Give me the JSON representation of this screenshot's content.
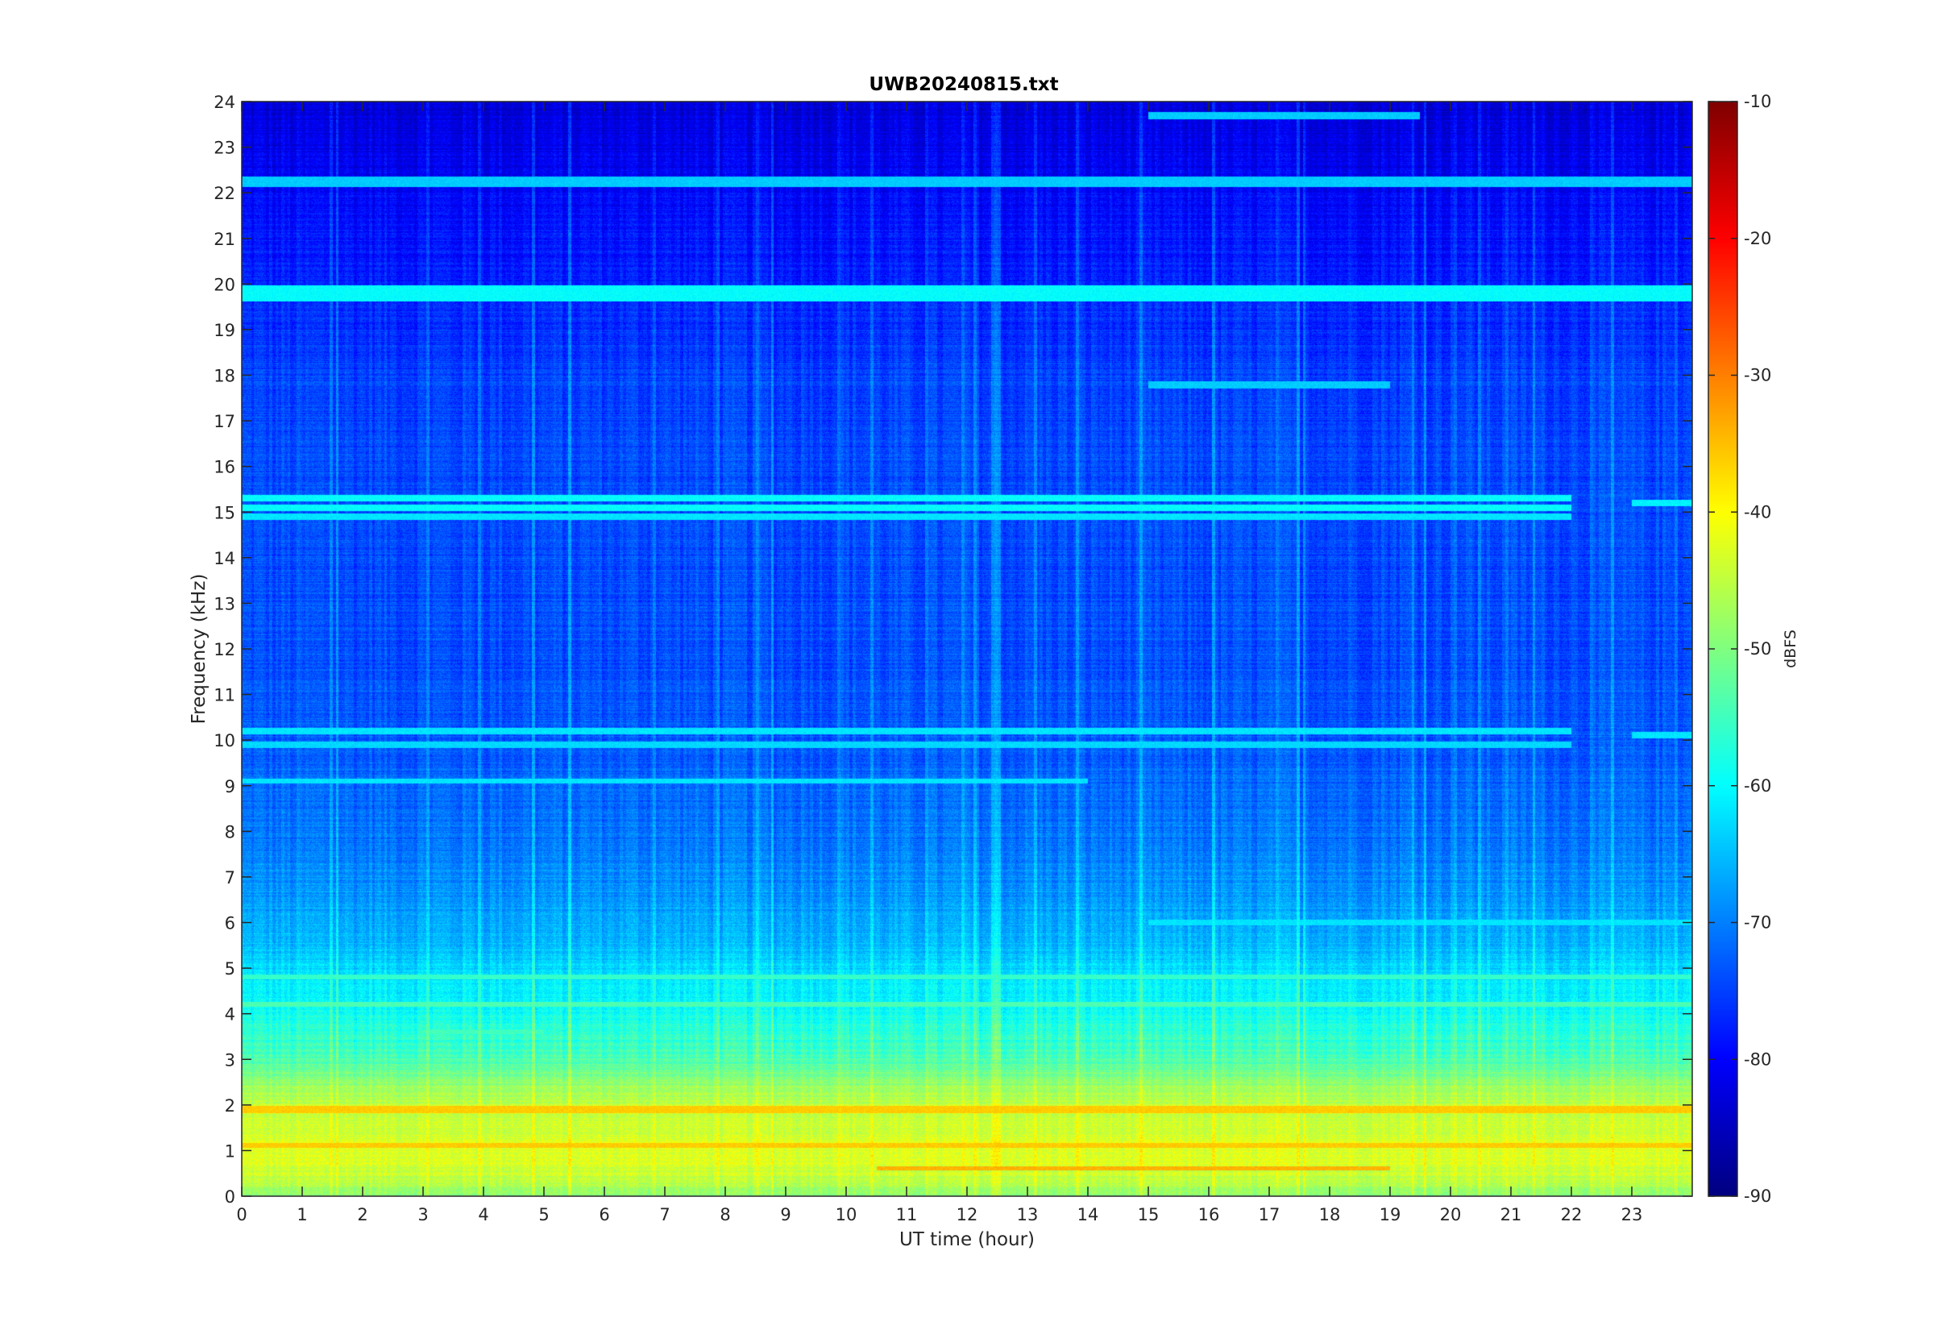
{
  "chart_data": {
    "type": "heatmap",
    "title": "UWB20240815.txt",
    "xlabel": "UT time (hour)",
    "ylabel": "Frequency (kHz)",
    "xlim": [
      0,
      24
    ],
    "ylim": [
      0,
      24
    ],
    "x_ticks": [
      0,
      1,
      2,
      3,
      4,
      5,
      6,
      7,
      8,
      9,
      10,
      11,
      12,
      13,
      14,
      15,
      16,
      17,
      18,
      19,
      20,
      21,
      22,
      23
    ],
    "y_ticks": [
      0,
      1,
      2,
      3,
      4,
      5,
      6,
      7,
      8,
      9,
      10,
      11,
      12,
      13,
      14,
      15,
      16,
      17,
      18,
      19,
      20,
      21,
      22,
      23,
      24
    ],
    "colorbar": {
      "label": "dBFS",
      "range": [
        -90,
        -10
      ],
      "ticks": [
        -90,
        -80,
        -70,
        -60,
        -50,
        -40,
        -30,
        -20,
        -10
      ],
      "colormap": "jet"
    },
    "background_level_by_freq_khz": [
      {
        "f": 0.0,
        "db": -49
      },
      {
        "f": 0.5,
        "db": -44
      },
      {
        "f": 1.0,
        "db": -42
      },
      {
        "f": 1.5,
        "db": -44
      },
      {
        "f": 2.0,
        "db": -45
      },
      {
        "f": 2.5,
        "db": -49
      },
      {
        "f": 3.0,
        "db": -54
      },
      {
        "f": 4.0,
        "db": -59
      },
      {
        "f": 5.0,
        "db": -63
      },
      {
        "f": 6.0,
        "db": -67
      },
      {
        "f": 7.0,
        "db": -69
      },
      {
        "f": 8.0,
        "db": -71
      },
      {
        "f": 9.0,
        "db": -72
      },
      {
        "f": 10.0,
        "db": -73
      },
      {
        "f": 12.0,
        "db": -74
      },
      {
        "f": 15.0,
        "db": -74
      },
      {
        "f": 18.0,
        "db": -75
      },
      {
        "f": 20.5,
        "db": -78
      },
      {
        "f": 22.0,
        "db": -80
      },
      {
        "f": 24.0,
        "db": -83
      }
    ],
    "bands": [
      {
        "f": 19.8,
        "width": 0.18,
        "db": -60,
        "t0": 0,
        "t1": 24
      },
      {
        "f": 22.25,
        "width": 0.12,
        "db": -64,
        "t0": 0,
        "t1": 24
      },
      {
        "f": 23.7,
        "width": 0.08,
        "db": -64,
        "t0": 15,
        "t1": 19.5
      },
      {
        "f": 17.8,
        "width": 0.08,
        "db": -64,
        "t0": 15,
        "t1": 19
      },
      {
        "f": 15.3,
        "width": 0.07,
        "db": -60,
        "t0": 0,
        "t1": 22
      },
      {
        "f": 15.1,
        "width": 0.07,
        "db": -60,
        "t0": 0,
        "t1": 22
      },
      {
        "f": 14.9,
        "width": 0.07,
        "db": -62,
        "t0": 0,
        "t1": 22
      },
      {
        "f": 15.2,
        "width": 0.07,
        "db": -61,
        "t0": 23,
        "t1": 24
      },
      {
        "f": 10.2,
        "width": 0.07,
        "db": -62,
        "t0": 0,
        "t1": 22
      },
      {
        "f": 9.9,
        "width": 0.07,
        "db": -63,
        "t0": 0,
        "t1": 22
      },
      {
        "f": 10.1,
        "width": 0.07,
        "db": -62,
        "t0": 23,
        "t1": 24
      },
      {
        "f": 9.1,
        "width": 0.06,
        "db": -62,
        "t0": 0,
        "t1": 14
      },
      {
        "f": 6.0,
        "width": 0.06,
        "db": -62,
        "t0": 15,
        "t1": 24
      },
      {
        "f": 4.8,
        "width": 0.06,
        "db": -56,
        "t0": 0,
        "t1": 24
      },
      {
        "f": 4.2,
        "width": 0.06,
        "db": -54,
        "t0": 0,
        "t1": 24
      },
      {
        "f": 3.6,
        "width": 0.06,
        "db": -55,
        "t0": 3,
        "t1": 5
      },
      {
        "f": 1.9,
        "width": 0.08,
        "db": -36,
        "t0": 0,
        "t1": 24
      },
      {
        "f": 1.1,
        "width": 0.05,
        "db": -36,
        "t0": 0,
        "t1": 24
      },
      {
        "f": 0.6,
        "width": 0.05,
        "db": -34,
        "t0": 10.5,
        "t1": 19
      }
    ]
  }
}
